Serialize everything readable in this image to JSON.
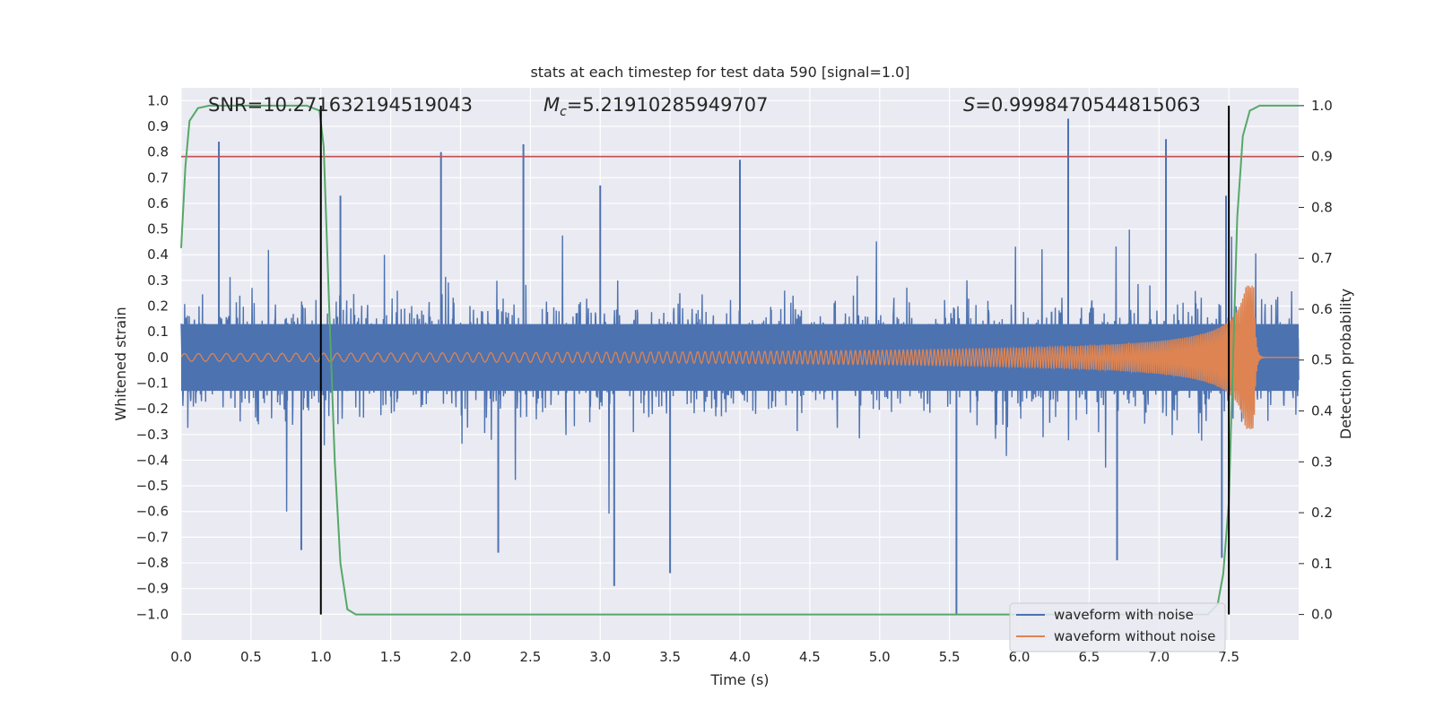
{
  "chart_data": {
    "type": "line",
    "title": "stats at each timestep for test data 590 [signal=1.0]",
    "xlabel": "Time (s)",
    "ylabel": "Whitened strain",
    "y2label": "Detection probability",
    "xlim": [
      0.0,
      8.0
    ],
    "ylim": [
      -1.1,
      1.05
    ],
    "y2lim": [
      -0.05,
      1.035
    ],
    "xticks": [
      "0.0",
      "0.5",
      "1.0",
      "1.5",
      "2.0",
      "2.5",
      "3.0",
      "3.5",
      "4.0",
      "4.5",
      "5.0",
      "5.5",
      "6.0",
      "6.5",
      "7.0",
      "7.5"
    ],
    "yticks": [
      "1.0",
      "0.9",
      "0.8",
      "0.7",
      "0.6",
      "0.5",
      "0.4",
      "0.3",
      "0.2",
      "0.1",
      "0.0",
      "−0.1",
      "−0.2",
      "−0.3",
      "−0.4",
      "−0.5",
      "−0.6",
      "−0.7",
      "−0.8",
      "−0.9",
      "−1.0"
    ],
    "y2ticks": [
      "1.0",
      "0.9",
      "0.8",
      "0.7",
      "0.6",
      "0.5",
      "0.4",
      "0.3",
      "0.2",
      "0.1",
      "0.0"
    ],
    "annotations": {
      "snr": "SNR=10.271632194519043",
      "mc_symbol": "M",
      "mc_sub": "c",
      "mc_value": "=5.21910285949707",
      "s_symbol": "S",
      "s_value": "=0.9998470544815063"
    },
    "threshold": {
      "axis": "y2",
      "value": 0.9,
      "color": "#c44e52"
    },
    "vlines": [
      1.0,
      7.5
    ],
    "series": [
      {
        "name": "waveform with noise",
        "color": "#4c72b0",
        "axis": "y",
        "style": "noise-band",
        "peaks_pos": [
          [
            0.27,
            0.84
          ],
          [
            1.14,
            0.63
          ],
          [
            1.86,
            0.8
          ],
          [
            2.45,
            0.83
          ],
          [
            3.0,
            0.67
          ],
          [
            4.0,
            0.77
          ],
          [
            6.35,
            0.93
          ],
          [
            7.05,
            0.85
          ],
          [
            7.48,
            0.63
          ]
        ],
        "peaks_neg": [
          [
            0.86,
            -0.75
          ],
          [
            2.27,
            -0.76
          ],
          [
            3.1,
            -0.89
          ],
          [
            3.5,
            -0.84
          ],
          [
            5.55,
            -1.0
          ],
          [
            6.7,
            -0.79
          ],
          [
            7.45,
            -0.78
          ]
        ]
      },
      {
        "name": "waveform without noise",
        "color": "#dd8452",
        "axis": "y",
        "style": "chirp",
        "f0": 10,
        "f1": 90,
        "t_merge": 7.68,
        "amp0": 0.015,
        "amp_peak": 0.28
      },
      {
        "name": "detection probability",
        "color": "#55a868",
        "axis": "y2",
        "x": [
          0.0,
          0.03,
          0.06,
          0.12,
          0.2,
          0.5,
          0.9,
          0.99,
          1.02,
          1.06,
          1.1,
          1.14,
          1.19,
          1.25,
          1.5,
          7.35,
          7.42,
          7.46,
          7.5,
          7.53,
          7.56,
          7.6,
          7.65,
          7.72,
          8.0
        ],
        "y": [
          0.72,
          0.88,
          0.97,
          0.995,
          1.0,
          1.0,
          1.0,
          0.99,
          0.92,
          0.6,
          0.3,
          0.1,
          0.01,
          0.0,
          0.0,
          0.0,
          0.02,
          0.08,
          0.22,
          0.5,
          0.78,
          0.94,
          0.99,
          1.0,
          1.0
        ]
      }
    ],
    "legend": {
      "placement": "lower-right",
      "entries": [
        "waveform with noise",
        "waveform without noise"
      ]
    }
  }
}
